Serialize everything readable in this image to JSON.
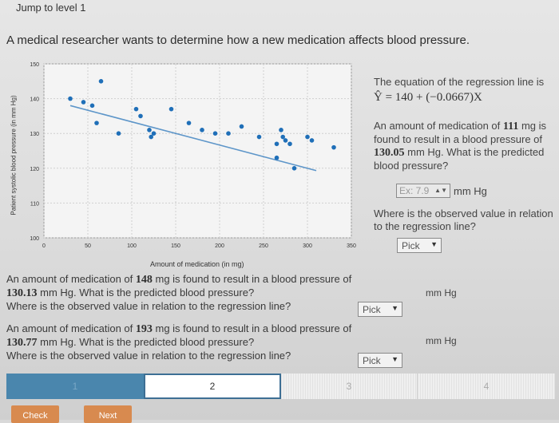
{
  "header": {
    "jump_label": "Jump to level 1"
  },
  "prompt": "A medical researcher wants to determine how a new medication affects blood pressure.",
  "chart_data": {
    "type": "scatter",
    "xlabel": "Amount of medication (in mg)",
    "ylabel": "Patient systolic blood pressure (in mm Hg)",
    "xlim": [
      0,
      350
    ],
    "ylim": [
      100,
      150
    ],
    "x_ticks": [
      0,
      50,
      100,
      150,
      200,
      250,
      300,
      350
    ],
    "y_ticks": [
      100,
      110,
      120,
      130,
      140,
      150
    ],
    "grid": true,
    "regression": {
      "intercept": 140,
      "slope": -0.0667
    },
    "points": [
      {
        "x": 30,
        "y": 140
      },
      {
        "x": 45,
        "y": 139
      },
      {
        "x": 55,
        "y": 138
      },
      {
        "x": 60,
        "y": 133
      },
      {
        "x": 65,
        "y": 145
      },
      {
        "x": 85,
        "y": 130
      },
      {
        "x": 105,
        "y": 137
      },
      {
        "x": 110,
        "y": 135
      },
      {
        "x": 120,
        "y": 131
      },
      {
        "x": 122,
        "y": 129
      },
      {
        "x": 125,
        "y": 130
      },
      {
        "x": 145,
        "y": 137
      },
      {
        "x": 165,
        "y": 133
      },
      {
        "x": 180,
        "y": 131
      },
      {
        "x": 195,
        "y": 130
      },
      {
        "x": 210,
        "y": 130
      },
      {
        "x": 225,
        "y": 132
      },
      {
        "x": 245,
        "y": 129
      },
      {
        "x": 265,
        "y": 127
      },
      {
        "x": 270,
        "y": 131
      },
      {
        "x": 272,
        "y": 129
      },
      {
        "x": 275,
        "y": 128
      },
      {
        "x": 280,
        "y": 127
      },
      {
        "x": 265,
        "y": 123
      },
      {
        "x": 285,
        "y": 120
      },
      {
        "x": 300,
        "y": 129
      },
      {
        "x": 305,
        "y": 128
      },
      {
        "x": 330,
        "y": 126
      }
    ]
  },
  "right_panel": {
    "eq_intro": "The equation of the regression line is",
    "eq_formula": "Ŷ = 140 + (−0.0667)X",
    "q1_prefix": "An amount of medication of ",
    "q1_amount": "111",
    "q1_mid": " mg is found to result in a blood pressure of ",
    "q1_bp": "130.05",
    "q1_suffix": " mm Hg. What is the predicted blood pressure?",
    "q1_input_placeholder": "Ex: 7.9",
    "q1_unit": "mm Hg",
    "q1_obs": "Where is the observed value in relation to the regression line?",
    "q1_pick": "Pick"
  },
  "bottom": {
    "q2_prefix": "An amount of medication of ",
    "q2_amount": "148",
    "q2_mid": " mg is found to result in a blood pressure of ",
    "q2_bp": "130.13",
    "q2_suffix": " mm Hg. What is the predicted blood pressure?",
    "q2_obs": "Where is the observed value in relation to the regression line?",
    "q2_unit": "mm Hg",
    "q2_pick": "Pick",
    "q3_prefix": "An amount of medication of ",
    "q3_amount": "193",
    "q3_mid": " mg is found to result in a blood pressure of ",
    "q3_bp": "130.77",
    "q3_suffix": " mm Hg. What is the predicted blood pressure?",
    "q3_obs": "Where is the observed value in relation to the regression line?",
    "q3_unit": "mm Hg",
    "q3_pick": "Pick"
  },
  "progress": {
    "seg1": "1",
    "seg2": "2",
    "seg3": "3",
    "seg4": "4"
  },
  "buttons": {
    "check": "Check",
    "next": "Next"
  },
  "colors": {
    "point": "#1f6fb8",
    "line": "#1f6fb8",
    "accent": "#4a86ad",
    "button": "#d88a4f"
  }
}
